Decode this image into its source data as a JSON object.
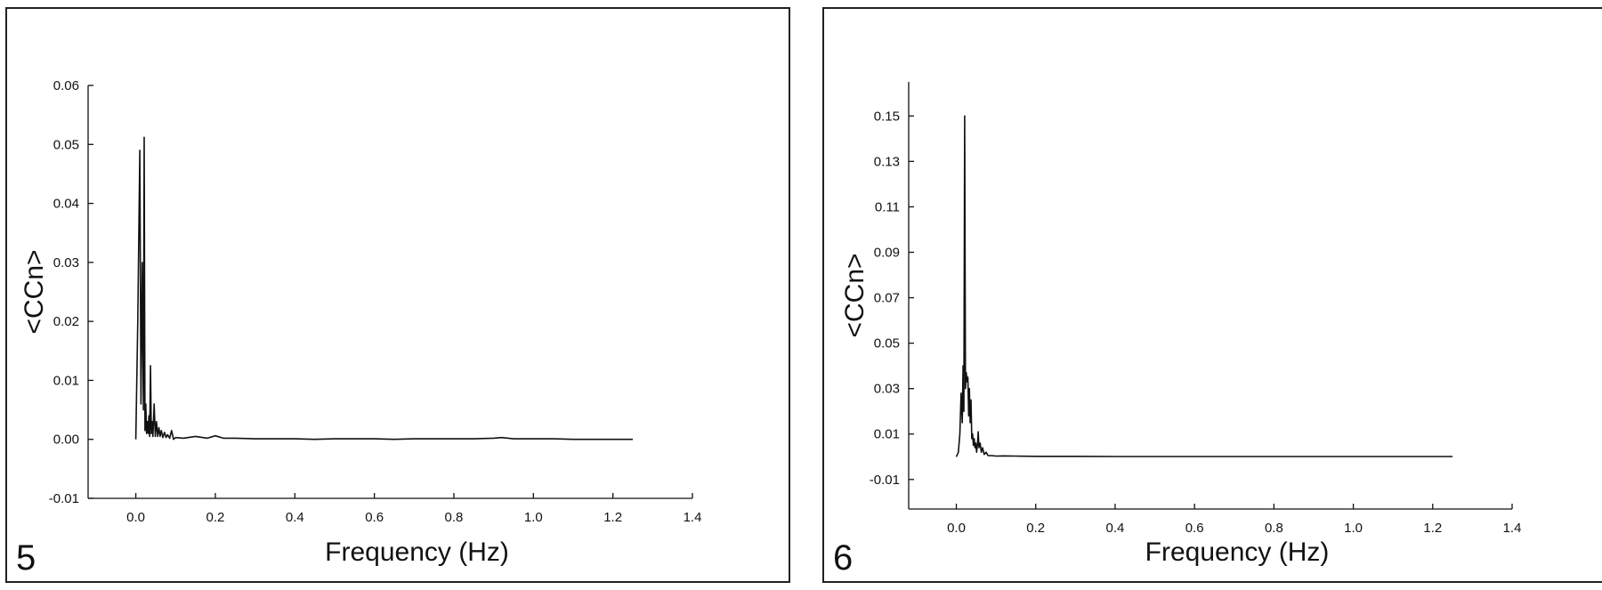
{
  "chart_data": [
    {
      "type": "line",
      "panel_label": "5",
      "xlabel": "Frequency (Hz)",
      "ylabel": "<CCn>",
      "xlim": [
        -0.12,
        1.4
      ],
      "ylim": [
        -0.01,
        0.06
      ],
      "xticks": [
        0.0,
        0.2,
        0.4,
        0.6,
        0.8,
        1.0,
        1.2,
        1.4
      ],
      "xtick_labels": [
        "0.0",
        "0.2",
        "0.4",
        "0.6",
        "0.8",
        "1.0",
        "1.2",
        "1.4"
      ],
      "yticks": [
        -0.01,
        0.0,
        0.01,
        0.02,
        0.03,
        0.04,
        0.05,
        0.06
      ],
      "ytick_labels": [
        "-0.01",
        "0.00",
        "0.01",
        "0.02",
        "0.03",
        "0.04",
        "0.05",
        "0.06"
      ],
      "grid": false,
      "series": [
        {
          "x": [
            0.0,
            0.005,
            0.01,
            0.013,
            0.016,
            0.019,
            0.021,
            0.023,
            0.025,
            0.027,
            0.029,
            0.031,
            0.033,
            0.035,
            0.037,
            0.039,
            0.041,
            0.043,
            0.046,
            0.049,
            0.052,
            0.055,
            0.058,
            0.061,
            0.064,
            0.068,
            0.072,
            0.076,
            0.08,
            0.085,
            0.09,
            0.095,
            0.1,
            0.12,
            0.15,
            0.18,
            0.2,
            0.22,
            0.25,
            0.3,
            0.35,
            0.4,
            0.45,
            0.5,
            0.55,
            0.6,
            0.65,
            0.7,
            0.75,
            0.8,
            0.85,
            0.9,
            0.92,
            0.95,
            1.0,
            1.05,
            1.1,
            1.15,
            1.2,
            1.25
          ],
          "y": [
            0.0,
            0.02,
            0.049,
            0.006,
            0.03,
            0.005,
            0.0512,
            0.0015,
            0.006,
            0.001,
            0.003,
            0.001,
            0.004,
            0.0005,
            0.0125,
            0.001,
            0.003,
            0.0005,
            0.006,
            0.0005,
            0.003,
            0.0005,
            0.002,
            0.0005,
            0.0015,
            0.0003,
            0.0012,
            0.0003,
            0.0008,
            0.0002,
            0.0015,
            0.0,
            0.0003,
            0.0002,
            0.0005,
            0.0002,
            0.0006,
            0.0002,
            0.0002,
            0.0001,
            0.0001,
            0.0001,
            0.0,
            0.0001,
            0.0001,
            0.0001,
            0.0,
            0.0001,
            0.0001,
            0.0001,
            0.0001,
            0.0002,
            0.0003,
            0.0001,
            0.0001,
            0.0001,
            0.0,
            0.0,
            0.0,
            0.0
          ]
        }
      ]
    },
    {
      "type": "line",
      "panel_label": "6",
      "xlabel": "Frequency (Hz)",
      "ylabel": "<CCn>",
      "xlim": [
        -0.12,
        1.4
      ],
      "ylim": [
        -0.023,
        0.165
      ],
      "xticks": [
        0.0,
        0.2,
        0.4,
        0.6,
        0.8,
        1.0,
        1.2,
        1.4
      ],
      "xtick_labels": [
        "0.0",
        "0.2",
        "0.4",
        "0.6",
        "0.8",
        "1.0",
        "1.2",
        "1.4"
      ],
      "yticks": [
        -0.01,
        0.01,
        0.03,
        0.05,
        0.07,
        0.09,
        0.11,
        0.13,
        0.15
      ],
      "ytick_labels": [
        "-0.01",
        "0.01",
        "0.03",
        "0.05",
        "0.07",
        "0.09",
        "0.11",
        "0.13",
        "0.15"
      ],
      "grid": false,
      "series": [
        {
          "x": [
            0.0,
            0.005,
            0.009,
            0.012,
            0.015,
            0.017,
            0.019,
            0.021,
            0.023,
            0.025,
            0.027,
            0.029,
            0.031,
            0.033,
            0.035,
            0.037,
            0.039,
            0.041,
            0.043,
            0.045,
            0.047,
            0.049,
            0.051,
            0.053,
            0.055,
            0.057,
            0.06,
            0.063,
            0.066,
            0.07,
            0.075,
            0.08,
            0.09,
            0.1,
            0.12,
            0.15,
            0.2,
            0.3,
            0.4,
            0.5,
            0.6,
            0.7,
            0.8,
            0.9,
            1.0,
            1.1,
            1.2,
            1.25
          ],
          "y": [
            0.0,
            0.002,
            0.01,
            0.028,
            0.015,
            0.04,
            0.02,
            0.15,
            0.03,
            0.037,
            0.033,
            0.035,
            0.018,
            0.03,
            0.015,
            0.025,
            0.008,
            0.01,
            0.005,
            0.008,
            0.004,
            0.006,
            0.002,
            0.005,
            0.011,
            0.004,
            0.006,
            0.002,
            0.004,
            0.001,
            0.002,
            0.0005,
            0.0005,
            0.0003,
            0.0004,
            0.0003,
            0.0002,
            0.0002,
            0.0001,
            0.0001,
            0.0001,
            0.0001,
            0.0001,
            0.0001,
            0.0001,
            0.0001,
            0.0001,
            0.0001
          ]
        }
      ]
    }
  ]
}
